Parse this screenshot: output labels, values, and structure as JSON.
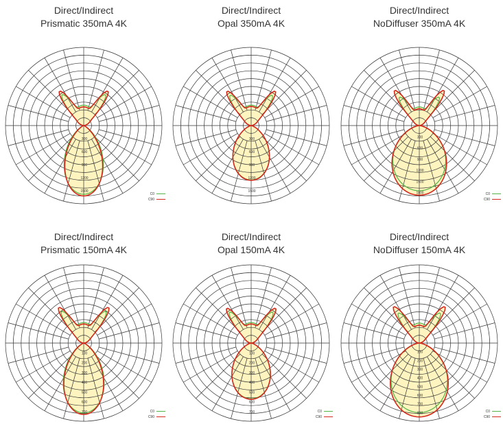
{
  "colors": {
    "c0": "#52b447",
    "c90": "#d4281c",
    "fill": "#fdf4bf",
    "grid": "#333333"
  },
  "charts": [
    {
      "title": [
        "Direct/Indirect",
        "Prismatic 350mA 4K"
      ],
      "labels": [
        "300",
        "600",
        "900",
        "1200",
        "1500"
      ],
      "rmax": 1800,
      "legend": {
        "c0": "C0",
        "c90": "C90"
      },
      "chart_data": {
        "type": "polar",
        "series": [
          {
            "name": "C0",
            "down": {
              "peak": 1580,
              "width": 0.55
            },
            "up": {
              "peak": 470,
              "lobe": 520
            }
          },
          {
            "name": "C90",
            "down": {
              "peak": 1620,
              "width": 0.48
            },
            "up": {
              "peak": 430,
              "lobe": 650
            }
          }
        ]
      }
    },
    {
      "title": [
        "Direct/Indirect",
        "Opal 350mA 4K"
      ],
      "labels": [
        "300",
        "600",
        "900",
        "1200",
        "1500"
      ],
      "rmax": 1800,
      "legend": null,
      "chart_data": {
        "type": "polar",
        "series": [
          {
            "name": "C0",
            "down": {
              "peak": 1250,
              "width": 0.8
            },
            "up": {
              "peak": 470,
              "lobe": 500
            }
          },
          {
            "name": "C90",
            "down": {
              "peak": 1260,
              "width": 0.78
            },
            "up": {
              "peak": 440,
              "lobe": 640
            }
          }
        ]
      }
    },
    {
      "title": [
        "Direct/Indirect",
        "NoDiffuser 350mA 4K"
      ],
      "labels": [
        "300",
        "600",
        "900",
        "1200",
        "1500",
        "1800"
      ],
      "rmax": 2100,
      "legend": {
        "c0": "C0",
        "c90": "C90"
      },
      "chart_data": {
        "type": "polar",
        "series": [
          {
            "name": "C0",
            "down": {
              "peak": 1750,
              "width": 1.25
            },
            "up": {
              "peak": 500,
              "lobe": 560
            }
          },
          {
            "name": "C90",
            "down": {
              "peak": 1870,
              "width": 1.15
            },
            "up": {
              "peak": 450,
              "lobe": 820
            }
          }
        ]
      }
    },
    {
      "title": [
        "Direct/Indirect",
        "Prismatic 150mA 4K"
      ],
      "labels": [
        "100",
        "200",
        "300",
        "400",
        "500",
        "600",
        "700"
      ],
      "rmax": 800,
      "legend": {
        "c0": "C0",
        "c90": "C90"
      },
      "chart_data": {
        "type": "polar",
        "series": [
          {
            "name": "C0",
            "down": {
              "peak": 715,
              "width": 0.58
            },
            "up": {
              "peak": 210,
              "lobe": 240
            }
          },
          {
            "name": "C90",
            "down": {
              "peak": 730,
              "width": 0.52
            },
            "up": {
              "peak": 195,
              "lobe": 300
            }
          }
        ]
      }
    },
    {
      "title": [
        "Direct/Indirect",
        "Opal 150mA 4K"
      ],
      "labels": [
        "100",
        "200",
        "300",
        "400",
        "500",
        "600",
        "700"
      ],
      "rmax": 800,
      "legend": {
        "c0": "C0",
        "c90": "C90"
      },
      "chart_data": {
        "type": "polar",
        "series": [
          {
            "name": "C0",
            "down": {
              "peak": 570,
              "width": 0.85
            },
            "up": {
              "peak": 210,
              "lobe": 230
            }
          },
          {
            "name": "C90",
            "down": {
              "peak": 575,
              "width": 0.83
            },
            "up": {
              "peak": 195,
              "lobe": 290
            }
          }
        ]
      }
    },
    {
      "title": [
        "Direct/Indirect",
        "NoDiffuser 150mA 4K"
      ],
      "labels": [
        "100",
        "200",
        "300",
        "400",
        "500",
        "600",
        "700",
        "800"
      ],
      "rmax": 900,
      "legend": {
        "c0": "C0",
        "c90": "C90"
      },
      "chart_data": {
        "type": "polar",
        "series": [
          {
            "name": "C0",
            "down": {
              "peak": 800,
              "width": 1.25
            },
            "up": {
              "peak": 230,
              "lobe": 250
            }
          },
          {
            "name": "C90",
            "down": {
              "peak": 850,
              "width": 1.15
            },
            "up": {
              "peak": 205,
              "lobe": 360
            }
          }
        ]
      }
    }
  ]
}
